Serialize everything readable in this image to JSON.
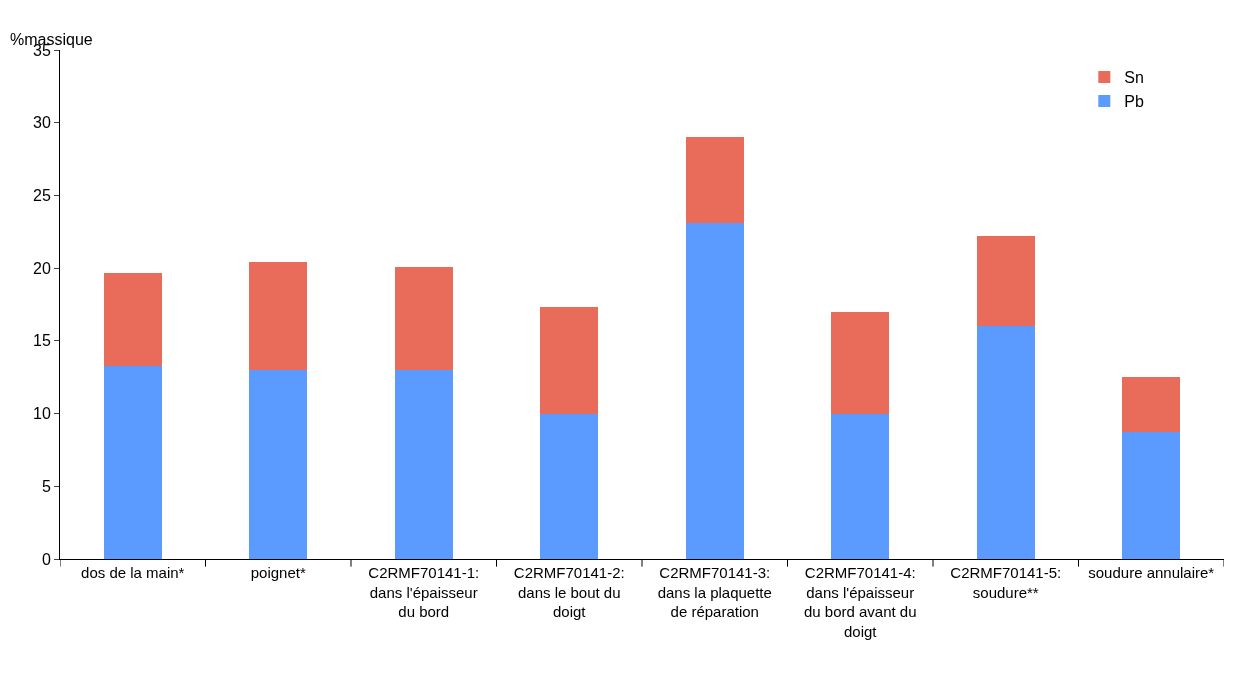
{
  "chart_data": {
    "type": "bar",
    "stacked": true,
    "ylabel": "%massique",
    "categories": [
      "dos de la main*",
      "poignet*",
      "C2RMF70141-1: dans l'épaisseur du bord",
      "C2RMF70141-2: dans le bout du doigt",
      "C2RMF70141-3: dans la plaquette de réparation",
      "C2RMF70141-4: dans l'épaisseur du bord avant du doigt",
      "C2RMF70141-5: soudure**",
      "soudure annulaire*"
    ],
    "series": [
      {
        "name": "Pb",
        "color": "#5b9bff",
        "values": [
          13.3,
          13.0,
          13.0,
          10.0,
          23.1,
          10.0,
          16.0,
          8.7
        ]
      },
      {
        "name": "Sn",
        "color": "#e96c5a",
        "values": [
          6.4,
          7.4,
          7.1,
          7.3,
          5.9,
          7.0,
          6.2,
          3.8
        ]
      }
    ],
    "ylim": [
      0,
      35
    ],
    "yticks": [
      0,
      5,
      10,
      15,
      20,
      25,
      30,
      35
    ],
    "legend": "top right"
  }
}
